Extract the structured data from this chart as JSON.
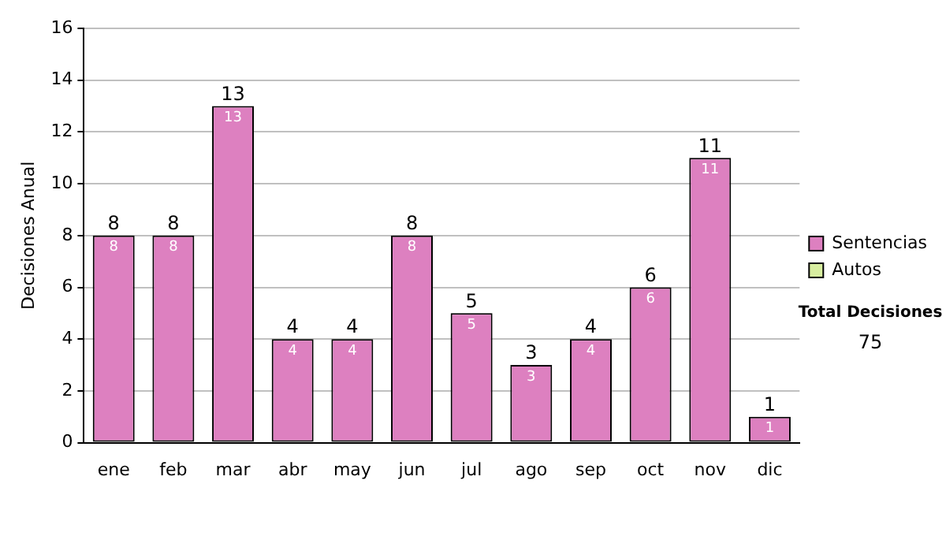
{
  "chart_data": {
    "type": "bar",
    "stacked": true,
    "ylabel": "Decisiones Anual",
    "categories": [
      "ene",
      "feb",
      "mar",
      "abr",
      "may",
      "jun",
      "jul",
      "ago",
      "sep",
      "oct",
      "nov",
      "dic"
    ],
    "series": [
      {
        "name": "Sentencias",
        "color": "#dd80c0",
        "values": [
          8,
          8,
          13,
          4,
          4,
          8,
          5,
          3,
          4,
          6,
          11,
          1
        ],
        "value_labels": [
          "8",
          "8",
          "13",
          "4",
          "4",
          "8",
          "5",
          "3",
          "4",
          "6",
          "11",
          "1"
        ]
      },
      {
        "name": "Autos",
        "color": "#d8eea0",
        "values": [
          0,
          0,
          0,
          0,
          0,
          0,
          0,
          0,
          0,
          0,
          0,
          0
        ]
      }
    ],
    "totals": [
      "8",
      "8",
      "13",
      "4",
      "4",
      "8",
      "5",
      "3",
      "4",
      "6",
      "11",
      "1"
    ],
    "ylim": [
      0,
      16
    ],
    "yticks": [
      0,
      2,
      4,
      6,
      8,
      10,
      12,
      14,
      16
    ],
    "grid": "y",
    "legend": "right",
    "annotations": [
      "Total Decisiones",
      "75"
    ]
  }
}
